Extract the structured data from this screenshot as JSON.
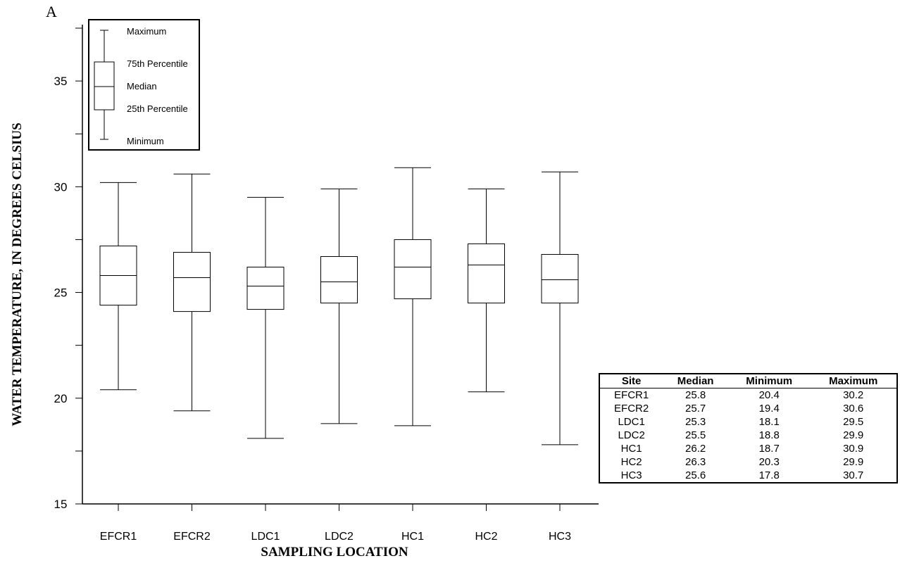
{
  "panel_label": "A",
  "chart_data": {
    "type": "box",
    "xlabel": "SAMPLING LOCATION",
    "ylabel": "WATER TEMPERATURE, IN DEGREES CELSIUS",
    "ylim": [
      15,
      37.5
    ],
    "y_major_ticks": [
      15,
      20,
      25,
      30,
      35
    ],
    "y_minor_ticks": [
      17.5,
      22.5,
      27.5,
      32.5,
      37.5
    ],
    "categories": [
      "EFCR1",
      "EFCR2",
      "LDC1",
      "LDC2",
      "HC1",
      "HC2",
      "HC3"
    ],
    "boxes": [
      {
        "site": "EFCR1",
        "min": 20.4,
        "q1": 24.4,
        "median": 25.8,
        "q3": 27.2,
        "max": 30.2
      },
      {
        "site": "EFCR2",
        "min": 19.4,
        "q1": 24.1,
        "median": 25.7,
        "q3": 26.9,
        "max": 30.6
      },
      {
        "site": "LDC1",
        "min": 18.1,
        "q1": 24.2,
        "median": 25.3,
        "q3": 26.2,
        "max": 29.5
      },
      {
        "site": "LDC2",
        "min": 18.8,
        "q1": 24.5,
        "median": 25.5,
        "q3": 26.7,
        "max": 29.9
      },
      {
        "site": "HC1",
        "min": 18.7,
        "q1": 24.7,
        "median": 26.2,
        "q3": 27.5,
        "max": 30.9
      },
      {
        "site": "HC2",
        "min": 20.3,
        "q1": 24.5,
        "median": 26.3,
        "q3": 27.3,
        "max": 29.9
      },
      {
        "site": "HC3",
        "min": 17.8,
        "q1": 24.5,
        "median": 25.6,
        "q3": 26.8,
        "max": 30.7
      }
    ],
    "legend": {
      "placement": "top-left",
      "labels": [
        "Maximum",
        "75th Percentile",
        "Median",
        "25th Percentile",
        "Minimum"
      ]
    },
    "table": {
      "placement": "bottom-right",
      "headers": [
        "Site",
        "Median",
        "Minimum",
        "Maximum"
      ],
      "rows": [
        [
          "EFCR1",
          "25.8",
          "20.4",
          "30.2"
        ],
        [
          "EFCR2",
          "25.7",
          "19.4",
          "30.6"
        ],
        [
          "LDC1",
          "25.3",
          "18.1",
          "29.5"
        ],
        [
          "LDC2",
          "25.5",
          "18.8",
          "29.9"
        ],
        [
          "HC1",
          "26.2",
          "18.7",
          "30.9"
        ],
        [
          "HC2",
          "26.3",
          "20.3",
          "29.9"
        ],
        [
          "HC3",
          "25.6",
          "17.8",
          "30.7"
        ]
      ]
    }
  }
}
